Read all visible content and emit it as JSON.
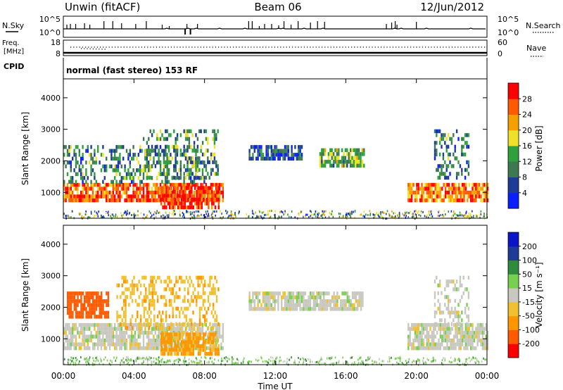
{
  "header": {
    "station": "Unwin (fitACF)",
    "beam": "Beam 06",
    "date": "12/Jun/2012"
  },
  "strip_labels": {
    "nsky": "N.Sky",
    "nsky_ticks": [
      "10^5",
      "10^0"
    ],
    "nsearch": "N.Search",
    "nsearch_ticks": [
      "10^5",
      "10^0"
    ],
    "freq": "Freq.",
    "freq_unit": "[MHz]",
    "freq_ticks": [
      "18",
      "8"
    ],
    "nave": "Nave",
    "nave_ticks": [
      "60",
      "0"
    ],
    "cpid": "CPID",
    "mode_text": "normal (fast stereo) 153 RF"
  },
  "colors": {
    "power_scale": [
      "#0a1eff",
      "#1e3c96",
      "#3c7850",
      "#2ea03c",
      "#f0e028",
      "#f5a000",
      "#ff5a00",
      "#ff0000"
    ],
    "velocity_scale": [
      "#ff0000",
      "#ff5a00",
      "#ff9600",
      "#f0c030",
      "#c8c8c0",
      "#78d050",
      "#2e8c3c",
      "#1e3c96",
      "#0a14c8"
    ],
    "ground_scatter": "#a0a0a0"
  },
  "chart_data": [
    {
      "type": "heatmap",
      "panel": "power",
      "xlabel": "",
      "ylabel": "Slant Range [km]",
      "xlim": [
        "00:00",
        "24:00"
      ],
      "ylim": [
        180,
        4600
      ],
      "yticks": [
        "1000",
        "2000",
        "3000",
        "4000"
      ],
      "colorbar": {
        "label": "Power [dB]",
        "range": [
          0,
          32
        ],
        "ticks": [
          "4",
          "8",
          "12",
          "16",
          "20",
          "24",
          "28"
        ]
      },
      "scatter_regions": [
        {
          "hours": [
            0.0,
            9.0
          ],
          "range_km": [
            700,
            1300
          ],
          "value_db": 26
        },
        {
          "hours": [
            0.0,
            8.0
          ],
          "range_km": [
            1300,
            2500
          ],
          "value_db": 10
        },
        {
          "hours": [
            5.5,
            8.8
          ],
          "range_km": [
            550,
            1200
          ],
          "value_db": 28
        },
        {
          "hours": [
            4.5,
            8.8
          ],
          "range_km": [
            1500,
            3000
          ],
          "value_db": 12
        },
        {
          "hours": [
            10.5,
            13.5
          ],
          "range_km": [
            2100,
            2500
          ],
          "value_db": 6
        },
        {
          "hours": [
            14.5,
            17.0
          ],
          "range_km": [
            1900,
            2400
          ],
          "value_db": 14
        },
        {
          "hours": [
            19.5,
            24.0
          ],
          "range_km": [
            700,
            1300
          ],
          "value_db": 24
        },
        {
          "hours": [
            21.0,
            23.0
          ],
          "range_km": [
            1500,
            3000
          ],
          "value_db": 10
        }
      ]
    },
    {
      "type": "heatmap",
      "panel": "velocity",
      "xlabel": "Time UT",
      "ylabel": "Slant Range [km]",
      "xlim": [
        "00:00",
        "24:00"
      ],
      "ylim": [
        180,
        4600
      ],
      "xticks": [
        "00:00",
        "04:00",
        "08:00",
        "12:00",
        "16:00",
        "20:00",
        "00:00"
      ],
      "yticks": [
        "1000",
        "2000",
        "3000",
        "4000"
      ],
      "colorbar": {
        "label": "Velocity [m s⁻¹]",
        "ticks": [
          "200",
          "100",
          "50",
          "15",
          "-15",
          "-50",
          "-100",
          "-200"
        ]
      },
      "scatter_regions": [
        {
          "hours": [
            0.0,
            9.0
          ],
          "range_km": [
            700,
            1500
          ],
          "velocity_ms": 0
        },
        {
          "hours": [
            0.2,
            2.5
          ],
          "range_km": [
            1700,
            2500
          ],
          "velocity_ms": -150
        },
        {
          "hours": [
            3.0,
            8.8
          ],
          "range_km": [
            1300,
            3000
          ],
          "velocity_ms": -40
        },
        {
          "hours": [
            5.5,
            8.8
          ],
          "range_km": [
            550,
            1200
          ],
          "velocity_ms": -60
        },
        {
          "hours": [
            10.5,
            17.0
          ],
          "range_km": [
            1900,
            2500
          ],
          "velocity_ms": 0
        },
        {
          "hours": [
            19.5,
            24.0
          ],
          "range_km": [
            700,
            1500
          ],
          "velocity_ms": 0
        },
        {
          "hours": [
            21.0,
            23.0
          ],
          "range_km": [
            1500,
            3000
          ],
          "velocity_ms": 0
        }
      ]
    }
  ]
}
